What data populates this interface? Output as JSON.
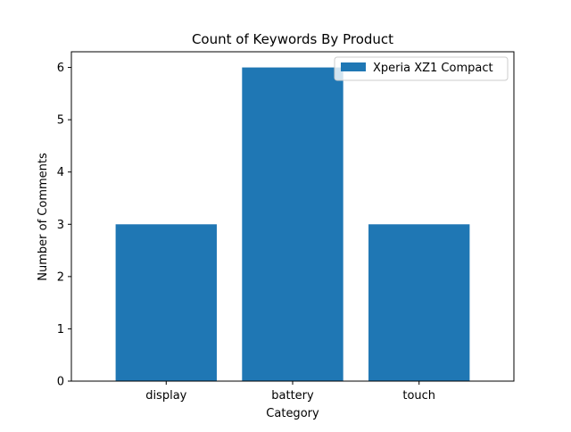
{
  "chart_data": {
    "type": "bar",
    "title": "Count of Keywords By Product",
    "xlabel": "Category",
    "ylabel": "Number of Comments",
    "categories": [
      "display",
      "battery",
      "touch"
    ],
    "series": [
      {
        "name": "Xperia XZ1 Compact",
        "values": [
          3,
          6,
          3
        ],
        "color": "#1f77b4"
      }
    ],
    "ylim": [
      0,
      6.3
    ],
    "yticks": [
      0,
      1,
      2,
      3,
      4,
      5,
      6
    ],
    "grid": false,
    "legend": "top-right"
  }
}
